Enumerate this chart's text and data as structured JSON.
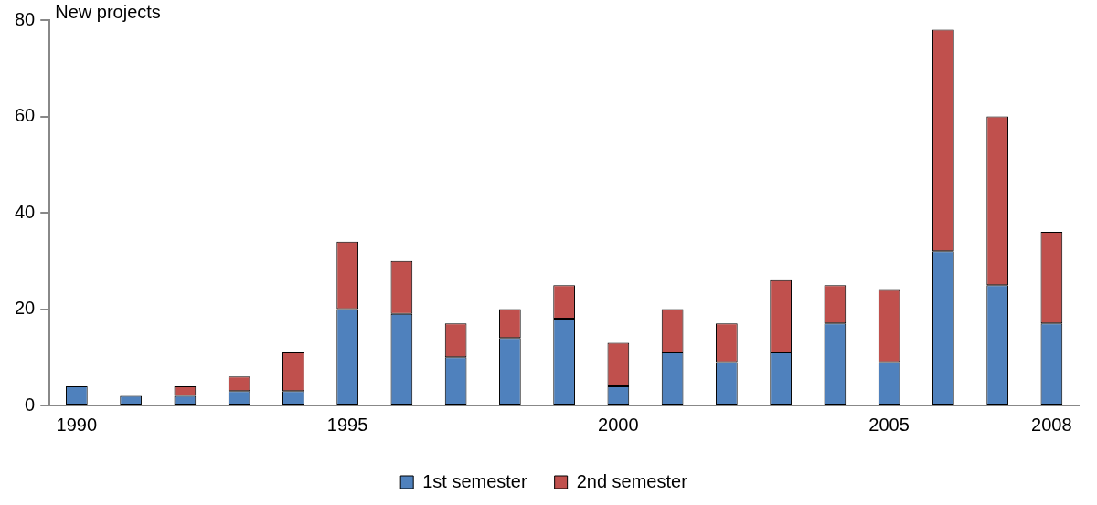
{
  "chart_data": {
    "type": "bar",
    "stacked": true,
    "ylabel": "New projects",
    "categories": [
      "1990",
      null,
      null,
      null,
      null,
      "1995",
      null,
      null,
      null,
      null,
      "2000",
      null,
      null,
      null,
      null,
      "2005",
      null,
      null,
      "2008"
    ],
    "series": [
      {
        "name": "1st semester",
        "color": "#4f81bd",
        "values": [
          4,
          2,
          2,
          3,
          3,
          20,
          19,
          10,
          14,
          18,
          4,
          11,
          9,
          11,
          17,
          9,
          32,
          25,
          17
        ]
      },
      {
        "name": "2nd semester",
        "color": "#c0504d",
        "values": [
          0,
          0,
          2,
          3,
          8,
          14,
          11,
          7,
          6,
          7,
          9,
          9,
          8,
          15,
          8,
          15,
          46,
          35,
          19
        ]
      }
    ],
    "ylim": [
      0,
      80
    ],
    "yticks": [
      0,
      20,
      40,
      60,
      80
    ],
    "grid": false,
    "legend": "bottom"
  }
}
